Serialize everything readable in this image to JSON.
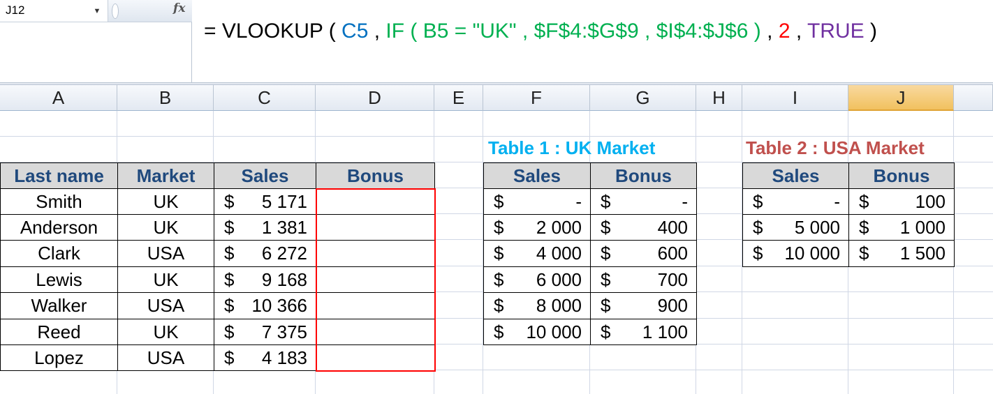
{
  "name_box": "J12",
  "fx_label": "fx",
  "formula_parts": [
    {
      "text": "= VLOOKUP ( ",
      "color": "#000000"
    },
    {
      "text": "C5",
      "color": "#0070c0"
    },
    {
      "text": " , ",
      "color": "#000000"
    },
    {
      "text": "IF ( B5 = \"UK\" , $F$4:$G$9 , $I$4:$J$6 )",
      "color": "#00b050"
    },
    {
      "text": " , ",
      "color": "#000000"
    },
    {
      "text": "2",
      "color": "#ff0000"
    },
    {
      "text": " , ",
      "color": "#000000"
    },
    {
      "text": "TRUE",
      "color": "#7030a0"
    },
    {
      "text": " )",
      "color": "#000000"
    }
  ],
  "columns": [
    "A",
    "B",
    "C",
    "D",
    "E",
    "F",
    "G",
    "H",
    "I",
    "J"
  ],
  "selected_column": "J",
  "main_table": {
    "headers": [
      "Last name",
      "Market",
      "Sales",
      "Bonus"
    ],
    "rows": [
      {
        "name": "Smith",
        "market": "UK",
        "sales": "5 171"
      },
      {
        "name": "Anderson",
        "market": "UK",
        "sales": "1 381"
      },
      {
        "name": "Clark",
        "market": "USA",
        "sales": "6 272"
      },
      {
        "name": "Lewis",
        "market": "UK",
        "sales": "9 168"
      },
      {
        "name": "Walker",
        "market": "USA",
        "sales": "10 366"
      },
      {
        "name": "Reed",
        "market": "UK",
        "sales": "7 375"
      },
      {
        "name": "Lopez",
        "market": "USA",
        "sales": "4 183"
      }
    ]
  },
  "uk_table": {
    "title": "Table 1 : UK Market",
    "headers": [
      "Sales",
      "Bonus"
    ],
    "rows": [
      [
        "-",
        "-"
      ],
      [
        "2 000",
        "400"
      ],
      [
        "4 000",
        "600"
      ],
      [
        "6 000",
        "700"
      ],
      [
        "8 000",
        "900"
      ],
      [
        "10 000",
        "1 100"
      ]
    ]
  },
  "usa_table": {
    "title": "Table 2 : USA Market",
    "headers": [
      "Sales",
      "Bonus"
    ],
    "rows": [
      [
        "-",
        "100"
      ],
      [
        "5 000",
        "1 000"
      ],
      [
        "10 000",
        "1 500"
      ]
    ]
  },
  "currency_symbol": "$"
}
